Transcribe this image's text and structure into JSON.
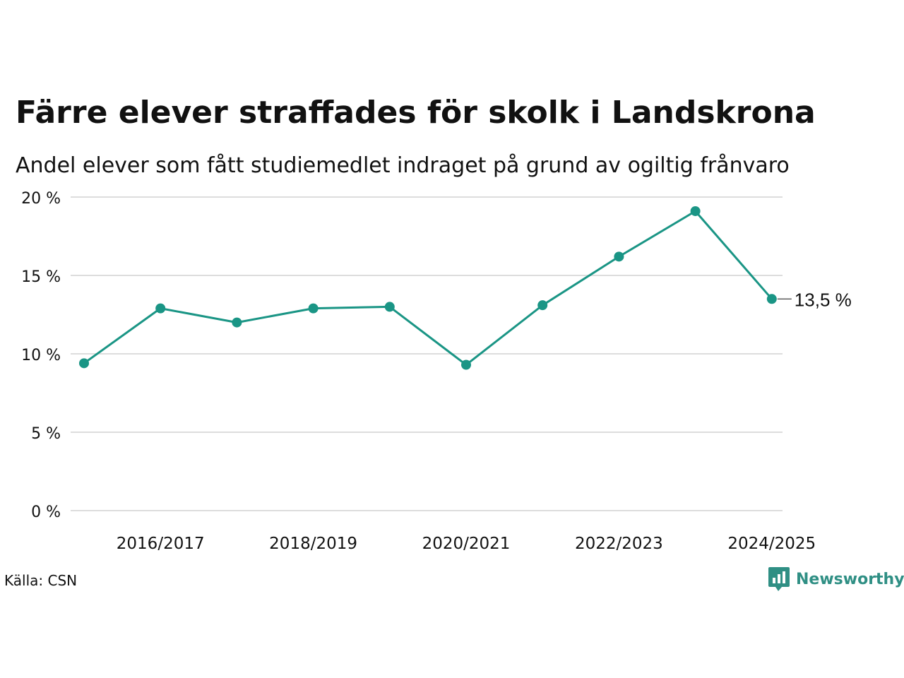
{
  "colors": {
    "line": "#1a9585",
    "grid": "#dddddd",
    "text": "#111111",
    "brand": "#2f8f84"
  },
  "chart_data": {
    "type": "line",
    "title": "Färre elever straffades för skolk i Landskrona",
    "subtitle": "Andel elever som fått studiemedlet indraget på grund av ogiltig frånvaro",
    "x_labels": [
      "2016/2017",
      "2018/2019",
      "2020/2021",
      "2022/2023",
      "2024/2025"
    ],
    "y_ticks": [
      "0 %",
      "5 %",
      "10 %",
      "15 %",
      "20 %"
    ],
    "y_tick_values": [
      0,
      5,
      10,
      15,
      20
    ],
    "ylim": [
      0,
      20
    ],
    "grid": true,
    "series": [
      {
        "values": [
          9.4,
          12.9,
          12.0,
          12.9,
          13.0,
          9.3,
          13.1,
          16.2,
          19.1,
          13.5
        ]
      }
    ],
    "end_label": "13,5 %"
  },
  "footer": {
    "source": "Källa: CSN",
    "brand": "Newsworthy",
    "brand_icon": "newsworthy-logo-icon"
  }
}
